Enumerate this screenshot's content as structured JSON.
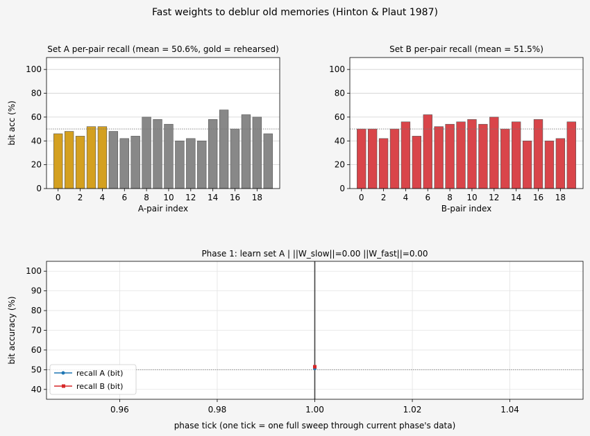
{
  "suptitle": "Fast weights to deblur old memories (Hinton & Plaut 1987)",
  "chart_data": [
    {
      "type": "bar",
      "title": "Set A per-pair recall   (mean = 50.6%, gold = rehearsed)",
      "xlabel": "A-pair index",
      "ylabel": "bit acc (%)",
      "categories": [
        0,
        1,
        2,
        3,
        4,
        5,
        6,
        7,
        8,
        9,
        10,
        11,
        12,
        13,
        14,
        15,
        16,
        17,
        18,
        19
      ],
      "values": [
        46,
        48,
        44,
        52,
        52,
        48,
        42,
        44,
        60,
        58,
        54,
        40,
        42,
        40,
        58,
        66,
        50,
        62,
        60,
        46
      ],
      "rehearsed_indices": [
        0,
        1,
        2,
        3,
        4
      ],
      "colors": {
        "rehearsed": "#d4a020",
        "other": "#888888"
      },
      "xticks": [
        0,
        2,
        4,
        6,
        8,
        10,
        12,
        14,
        16,
        18
      ],
      "yticks": [
        0,
        20,
        40,
        60,
        80,
        100
      ],
      "ylim": [
        0,
        110
      ],
      "reference_line": 50,
      "grid": "y"
    },
    {
      "type": "bar",
      "title": "Set B per-pair recall   (mean = 51.5%)",
      "xlabel": "B-pair index",
      "ylabel": "",
      "categories": [
        0,
        1,
        2,
        3,
        4,
        5,
        6,
        7,
        8,
        9,
        10,
        11,
        12,
        13,
        14,
        15,
        16,
        17,
        18,
        19
      ],
      "values": [
        50,
        50,
        42,
        50,
        56,
        44,
        62,
        52,
        54,
        56,
        58,
        54,
        60,
        50,
        56,
        40,
        58,
        40,
        42,
        56
      ],
      "colors": {
        "bar": "#d9454a"
      },
      "xticks": [
        0,
        2,
        4,
        6,
        8,
        10,
        12,
        14,
        16,
        18
      ],
      "yticks": [
        0,
        20,
        40,
        60,
        80,
        100
      ],
      "ylim": [
        0,
        110
      ],
      "reference_line": 50,
      "grid": "y"
    },
    {
      "type": "line",
      "title": "Phase 1: learn set A   |   ||W_slow||=0.00   ||W_fast||=0.00",
      "xlabel": "phase tick (one tick = one full sweep through current phase's data)",
      "ylabel": "bit accuracy (%)",
      "xlim": [
        0.945,
        1.055
      ],
      "ylim": [
        35,
        105
      ],
      "xticks": [
        "0.96",
        "0.98",
        "1.00",
        "1.02",
        "1.04"
      ],
      "yticks": [
        40,
        50,
        60,
        70,
        80,
        90,
        100
      ],
      "reference_line": 50,
      "current_tick": 1.0,
      "grid": "both",
      "legend": "lower-left",
      "series": [
        {
          "name": "recall A (bit)",
          "x": [
            1.0
          ],
          "y": [
            50.6
          ],
          "color": "#1f77b4",
          "marker": "circle"
        },
        {
          "name": "recall B (bit)",
          "x": [
            1.0
          ],
          "y": [
            51.5
          ],
          "color": "#d62728",
          "marker": "square"
        }
      ]
    }
  ]
}
